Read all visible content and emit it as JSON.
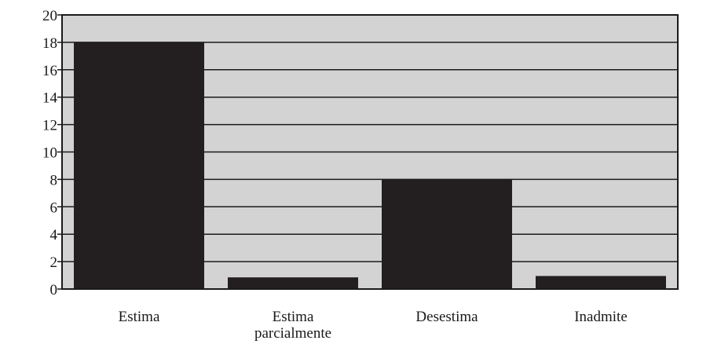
{
  "chart_data": {
    "type": "bar",
    "categories": [
      [
        "Estima"
      ],
      [
        "Estima",
        "parcialmente"
      ],
      [
        "Desestima"
      ],
      [
        "Inadmite"
      ]
    ],
    "values": [
      18,
      0.85,
      8,
      0.95
    ],
    "ylim": [
      0,
      20
    ],
    "yticks": [
      0,
      2,
      4,
      6,
      8,
      10,
      12,
      14,
      16,
      18,
      20
    ],
    "grid": true,
    "legend": "none",
    "colors": {
      "plot_background": "#d3d3d3",
      "bar": "#231f20",
      "grid": "#1a1a1a",
      "frame": "#1a1a1a"
    }
  }
}
